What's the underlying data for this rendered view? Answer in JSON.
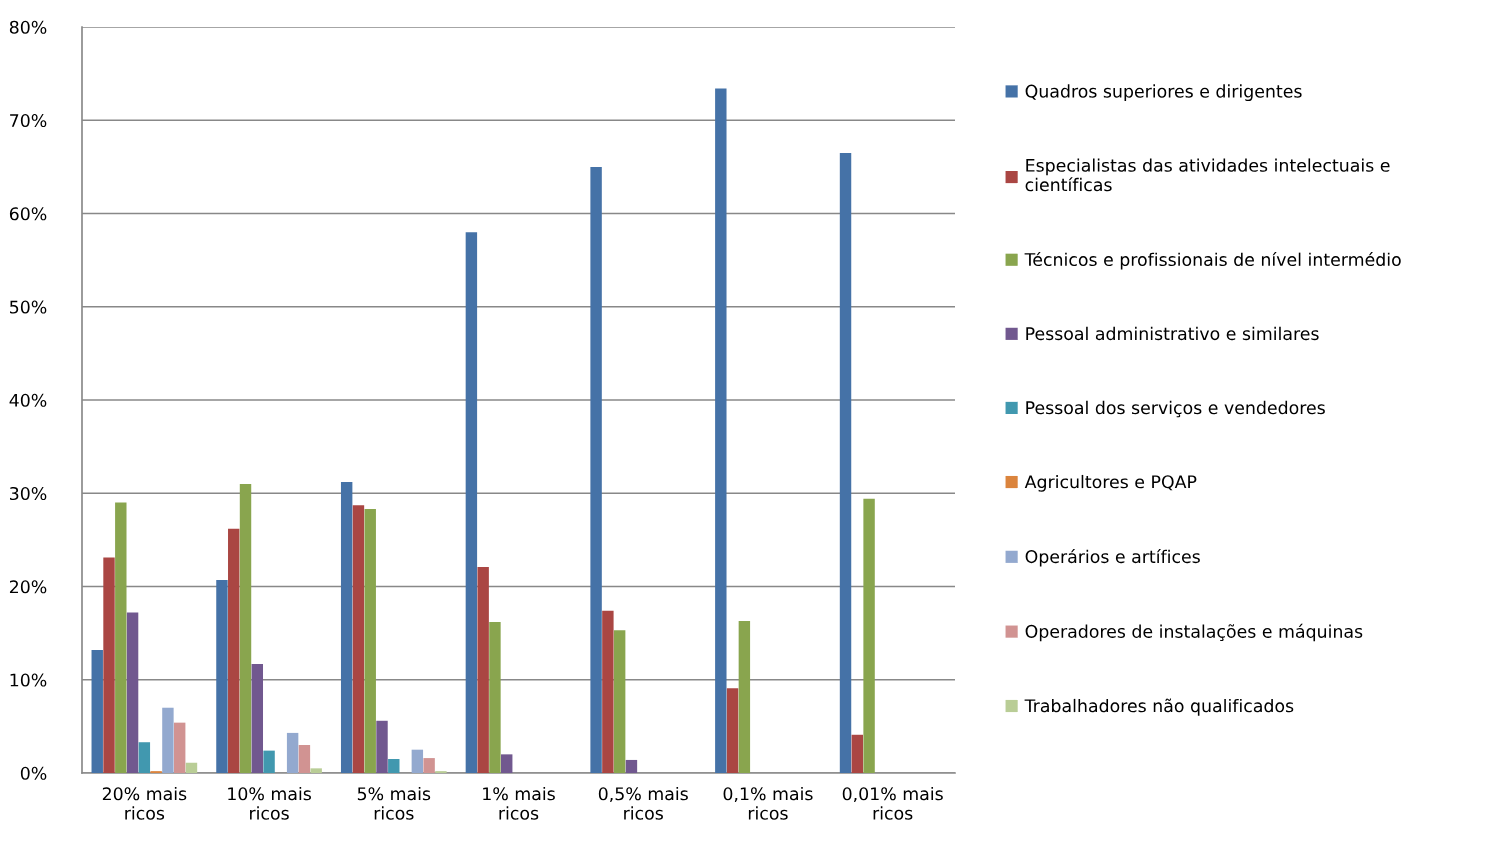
{
  "chart_data": {
    "type": "bar",
    "categories": [
      "20% mais ricos",
      "10% mais ricos",
      "5% mais ricos",
      "1% mais ricos",
      "0,5% mais ricos",
      "0,1% mais ricos",
      "0,01% mais ricos"
    ],
    "series": [
      {
        "name": "Quadros superiores e dirigentes",
        "color": "#4572a7",
        "values": [
          13.2,
          20.7,
          31.2,
          58.0,
          65.0,
          73.4,
          66.5
        ]
      },
      {
        "name": "Especialistas das atividades intelectuais e\ncientíficas",
        "color": "#aa4643",
        "values": [
          23.1,
          26.2,
          28.7,
          22.1,
          17.4,
          9.1,
          4.1
        ]
      },
      {
        "name": "Técnicos e profissionais de nível intermédio",
        "color": "#89a54e",
        "values": [
          29.0,
          31.0,
          28.3,
          16.2,
          15.3,
          16.3,
          29.4
        ]
      },
      {
        "name": "Pessoal administrativo e similares",
        "color": "#71588f",
        "values": [
          17.2,
          11.7,
          5.6,
          2.0,
          1.4,
          null,
          null
        ]
      },
      {
        "name": "Pessoal dos serviços e vendedores",
        "color": "#4198af",
        "values": [
          3.3,
          2.4,
          1.5,
          null,
          null,
          null,
          null
        ]
      },
      {
        "name": "Agricultores e PQAP",
        "color": "#db843d",
        "values": [
          0.2,
          null,
          null,
          null,
          null,
          null,
          null
        ]
      },
      {
        "name": "Operários e artífices",
        "color": "#93a9cf",
        "values": [
          7.0,
          4.3,
          2.5,
          null,
          null,
          null,
          null
        ]
      },
      {
        "name": "Operadores de instalações e máquinas",
        "color": "#d19392",
        "values": [
          5.4,
          3.0,
          1.6,
          null,
          null,
          null,
          null
        ]
      },
      {
        "name": "Trabalhadores não qualificados",
        "color": "#b9cd96",
        "values": [
          1.1,
          0.5,
          0.2,
          null,
          null,
          null,
          null
        ]
      }
    ],
    "ylim": [
      0,
      80
    ],
    "yticks": [
      {
        "value": 0,
        "label": "0%"
      },
      {
        "value": 10,
        "label": "10%"
      },
      {
        "value": 20,
        "label": "20%"
      },
      {
        "value": 30,
        "label": "30%"
      },
      {
        "value": 40,
        "label": "40%"
      },
      {
        "value": 50,
        "label": "50%"
      },
      {
        "value": 60,
        "label": "60%"
      },
      {
        "value": 70,
        "label": "70%"
      },
      {
        "value": 80,
        "label": "80%"
      }
    ],
    "grid": "y",
    "legend": "right"
  }
}
